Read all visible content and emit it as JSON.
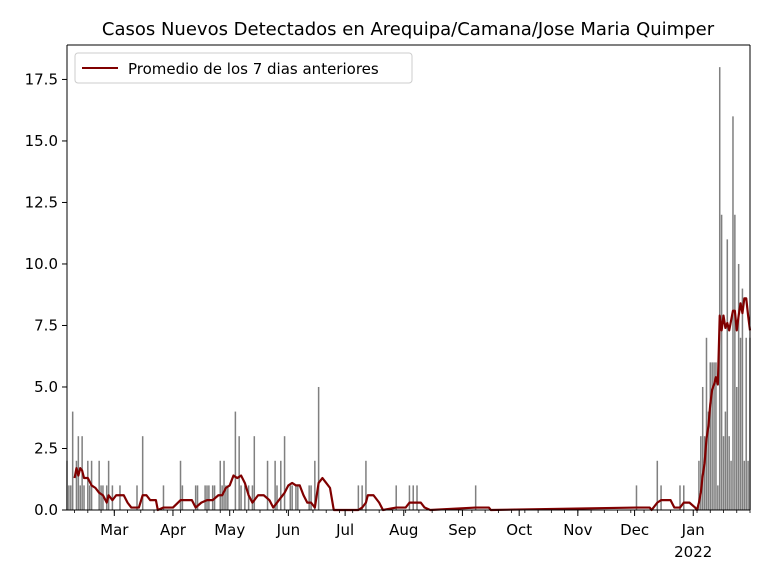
{
  "chart_data": {
    "type": "bar",
    "title": "Casos Nuevos Detectados en Arequipa/Camana/Jose Maria Quimper",
    "xlabel": "",
    "ylabel": "",
    "ylim": [
      0,
      18.9
    ],
    "yticks": [
      "0.0",
      "2.5",
      "5.0",
      "7.5",
      "10.0",
      "12.5",
      "15.0",
      "17.5"
    ],
    "xrange": [
      "2021-02-04",
      "2022-01-31"
    ],
    "xticks": [
      {
        "date": "2021-03-01",
        "label": "Mar",
        "sublabel": ""
      },
      {
        "date": "2021-04-01",
        "label": "Apr",
        "sublabel": ""
      },
      {
        "date": "2021-05-01",
        "label": "May",
        "sublabel": ""
      },
      {
        "date": "2021-06-01",
        "label": "Jun",
        "sublabel": ""
      },
      {
        "date": "2021-07-01",
        "label": "Jul",
        "sublabel": ""
      },
      {
        "date": "2021-08-01",
        "label": "Aug",
        "sublabel": ""
      },
      {
        "date": "2021-09-01",
        "label": "Sep",
        "sublabel": ""
      },
      {
        "date": "2021-10-01",
        "label": "Oct",
        "sublabel": ""
      },
      {
        "date": "2021-11-01",
        "label": "Nov",
        "sublabel": ""
      },
      {
        "date": "2021-12-01",
        "label": "Dec",
        "sublabel": ""
      },
      {
        "date": "2022-01-01",
        "label": "Jan",
        "sublabel": "2022"
      }
    ],
    "grid": false,
    "legend_position": "top-left",
    "bar_color": "#808080",
    "line_color": "#800000",
    "series": [
      {
        "name": "",
        "type": "bar",
        "points": [
          [
            "2021-02-04",
            2
          ],
          [
            "2021-02-05",
            1
          ],
          [
            "2021-02-06",
            1
          ],
          [
            "2021-02-07",
            4
          ],
          [
            "2021-02-09",
            2
          ],
          [
            "2021-02-10",
            3
          ],
          [
            "2021-02-11",
            1
          ],
          [
            "2021-02-12",
            3
          ],
          [
            "2021-02-13",
            1
          ],
          [
            "2021-02-15",
            2
          ],
          [
            "2021-02-16",
            1
          ],
          [
            "2021-02-17",
            2
          ],
          [
            "2021-02-21",
            2
          ],
          [
            "2021-02-22",
            1
          ],
          [
            "2021-02-23",
            1
          ],
          [
            "2021-02-25",
            1
          ],
          [
            "2021-02-26",
            2
          ],
          [
            "2021-02-28",
            1
          ],
          [
            "2021-03-04",
            1
          ],
          [
            "2021-03-13",
            1
          ],
          [
            "2021-03-16",
            3
          ],
          [
            "2021-03-27",
            1
          ],
          [
            "2021-04-05",
            2
          ],
          [
            "2021-04-06",
            1
          ],
          [
            "2021-04-13",
            1
          ],
          [
            "2021-04-14",
            1
          ],
          [
            "2021-04-18",
            1
          ],
          [
            "2021-04-19",
            1
          ],
          [
            "2021-04-20",
            1
          ],
          [
            "2021-04-22",
            1
          ],
          [
            "2021-04-23",
            1
          ],
          [
            "2021-04-26",
            2
          ],
          [
            "2021-04-27",
            1
          ],
          [
            "2021-04-28",
            2
          ],
          [
            "2021-04-29",
            1
          ],
          [
            "2021-04-30",
            1
          ],
          [
            "2021-05-04",
            4
          ],
          [
            "2021-05-06",
            3
          ],
          [
            "2021-05-07",
            1
          ],
          [
            "2021-05-09",
            1
          ],
          [
            "2021-05-11",
            1
          ],
          [
            "2021-05-13",
            1
          ],
          [
            "2021-05-14",
            3
          ],
          [
            "2021-05-21",
            2
          ],
          [
            "2021-05-25",
            2
          ],
          [
            "2021-05-26",
            1
          ],
          [
            "2021-05-28",
            2
          ],
          [
            "2021-05-30",
            3
          ],
          [
            "2021-06-02",
            1
          ],
          [
            "2021-06-03",
            1
          ],
          [
            "2021-06-05",
            1
          ],
          [
            "2021-06-06",
            1
          ],
          [
            "2021-06-12",
            1
          ],
          [
            "2021-06-13",
            1
          ],
          [
            "2021-06-15",
            2
          ],
          [
            "2021-06-17",
            5
          ],
          [
            "2021-07-08",
            1
          ],
          [
            "2021-07-10",
            1
          ],
          [
            "2021-07-12",
            2
          ],
          [
            "2021-07-28",
            1
          ],
          [
            "2021-08-04",
            1
          ],
          [
            "2021-08-06",
            1
          ],
          [
            "2021-08-08",
            1
          ],
          [
            "2021-09-08",
            1
          ],
          [
            "2021-12-02",
            1
          ],
          [
            "2021-12-13",
            2
          ],
          [
            "2021-12-15",
            1
          ],
          [
            "2021-12-25",
            1
          ],
          [
            "2021-12-27",
            1
          ],
          [
            "2022-01-04",
            2
          ],
          [
            "2022-01-05",
            3
          ],
          [
            "2022-01-06",
            5
          ],
          [
            "2022-01-07",
            3
          ],
          [
            "2022-01-08",
            7
          ],
          [
            "2022-01-09",
            4
          ],
          [
            "2022-01-10",
            6
          ],
          [
            "2022-01-11",
            6
          ],
          [
            "2022-01-12",
            6
          ],
          [
            "2022-01-13",
            6
          ],
          [
            "2022-01-14",
            1
          ],
          [
            "2022-01-15",
            18
          ],
          [
            "2022-01-16",
            12
          ],
          [
            "2022-01-17",
            3
          ],
          [
            "2022-01-18",
            4
          ],
          [
            "2022-01-19",
            11
          ],
          [
            "2022-01-20",
            3
          ],
          [
            "2022-01-21",
            2
          ],
          [
            "2022-01-22",
            16
          ],
          [
            "2022-01-23",
            12
          ],
          [
            "2022-01-24",
            5
          ],
          [
            "2022-01-25",
            10
          ],
          [
            "2022-01-26",
            7
          ],
          [
            "2022-01-27",
            9
          ],
          [
            "2022-01-28",
            2
          ],
          [
            "2022-01-29",
            7
          ],
          [
            "2022-01-30",
            2
          ],
          [
            "2022-01-31",
            7
          ]
        ]
      },
      {
        "name": "Promedio de los 7 dias anteriores",
        "type": "line",
        "points": [
          [
            "2021-02-08",
            1.3
          ],
          [
            "2021-02-09",
            1.7
          ],
          [
            "2021-02-10",
            1.4
          ],
          [
            "2021-02-11",
            1.7
          ],
          [
            "2021-02-12",
            1.6
          ],
          [
            "2021-02-13",
            1.3
          ],
          [
            "2021-02-15",
            1.3
          ],
          [
            "2021-02-17",
            1.0
          ],
          [
            "2021-02-19",
            0.9
          ],
          [
            "2021-02-21",
            0.7
          ],
          [
            "2021-02-23",
            0.6
          ],
          [
            "2021-02-25",
            0.3
          ],
          [
            "2021-02-26",
            0.6
          ],
          [
            "2021-02-28",
            0.4
          ],
          [
            "2021-03-02",
            0.6
          ],
          [
            "2021-03-04",
            0.6
          ],
          [
            "2021-03-06",
            0.6
          ],
          [
            "2021-03-08",
            0.3
          ],
          [
            "2021-03-10",
            0.1
          ],
          [
            "2021-03-12",
            0.1
          ],
          [
            "2021-03-14",
            0.1
          ],
          [
            "2021-03-16",
            0.6
          ],
          [
            "2021-03-18",
            0.6
          ],
          [
            "2021-03-20",
            0.4
          ],
          [
            "2021-03-23",
            0.4
          ],
          [
            "2021-03-24",
            0.0
          ],
          [
            "2021-03-27",
            0.1
          ],
          [
            "2021-04-01",
            0.1
          ],
          [
            "2021-04-05",
            0.4
          ],
          [
            "2021-04-08",
            0.4
          ],
          [
            "2021-04-11",
            0.4
          ],
          [
            "2021-04-13",
            0.1
          ],
          [
            "2021-04-16",
            0.3
          ],
          [
            "2021-04-19",
            0.4
          ],
          [
            "2021-04-22",
            0.4
          ],
          [
            "2021-04-25",
            0.6
          ],
          [
            "2021-04-27",
            0.6
          ],
          [
            "2021-04-29",
            0.9
          ],
          [
            "2021-05-01",
            1.0
          ],
          [
            "2021-05-03",
            1.4
          ],
          [
            "2021-05-05",
            1.3
          ],
          [
            "2021-05-07",
            1.4
          ],
          [
            "2021-05-09",
            1.1
          ],
          [
            "2021-05-11",
            0.6
          ],
          [
            "2021-05-13",
            0.3
          ],
          [
            "2021-05-16",
            0.6
          ],
          [
            "2021-05-19",
            0.6
          ],
          [
            "2021-05-22",
            0.4
          ],
          [
            "2021-05-24",
            0.1
          ],
          [
            "2021-05-27",
            0.4
          ],
          [
            "2021-05-30",
            0.7
          ],
          [
            "2021-06-01",
            1.0
          ],
          [
            "2021-06-03",
            1.1
          ],
          [
            "2021-06-05",
            1.0
          ],
          [
            "2021-06-07",
            1.0
          ],
          [
            "2021-06-09",
            0.6
          ],
          [
            "2021-06-11",
            0.3
          ],
          [
            "2021-06-13",
            0.3
          ],
          [
            "2021-06-15",
            0.1
          ],
          [
            "2021-06-17",
            1.1
          ],
          [
            "2021-06-19",
            1.3
          ],
          [
            "2021-06-21",
            1.1
          ],
          [
            "2021-06-23",
            0.9
          ],
          [
            "2021-06-25",
            0.0
          ],
          [
            "2021-07-08",
            0.0
          ],
          [
            "2021-07-10",
            0.1
          ],
          [
            "2021-07-12",
            0.3
          ],
          [
            "2021-07-13",
            0.6
          ],
          [
            "2021-07-16",
            0.6
          ],
          [
            "2021-07-19",
            0.3
          ],
          [
            "2021-07-21",
            0.0
          ],
          [
            "2021-07-28",
            0.1
          ],
          [
            "2021-08-02",
            0.1
          ],
          [
            "2021-08-04",
            0.3
          ],
          [
            "2021-08-06",
            0.3
          ],
          [
            "2021-08-08",
            0.3
          ],
          [
            "2021-08-10",
            0.3
          ],
          [
            "2021-08-12",
            0.1
          ],
          [
            "2021-08-15",
            0.0
          ],
          [
            "2021-09-08",
            0.1
          ],
          [
            "2021-09-15",
            0.1
          ],
          [
            "2021-09-16",
            0.0
          ],
          [
            "2021-12-02",
            0.1
          ],
          [
            "2021-12-09",
            0.1
          ],
          [
            "2021-12-10",
            0.0
          ],
          [
            "2021-12-13",
            0.3
          ],
          [
            "2021-12-15",
            0.4
          ],
          [
            "2021-12-20",
            0.4
          ],
          [
            "2021-12-22",
            0.1
          ],
          [
            "2021-12-25",
            0.1
          ],
          [
            "2021-12-27",
            0.3
          ],
          [
            "2021-12-30",
            0.3
          ],
          [
            "2022-01-02",
            0.1
          ],
          [
            "2022-01-03",
            0.0
          ],
          [
            "2022-01-04",
            0.3
          ],
          [
            "2022-01-05",
            0.7
          ],
          [
            "2022-01-06",
            1.4
          ],
          [
            "2022-01-07",
            1.9
          ],
          [
            "2022-01-08",
            2.9
          ],
          [
            "2022-01-09",
            3.4
          ],
          [
            "2022-01-10",
            4.3
          ],
          [
            "2022-01-11",
            4.9
          ],
          [
            "2022-01-12",
            5.1
          ],
          [
            "2022-01-13",
            5.4
          ],
          [
            "2022-01-14",
            5.1
          ],
          [
            "2022-01-15",
            7.9
          ],
          [
            "2022-01-16",
            7.3
          ],
          [
            "2022-01-17",
            7.9
          ],
          [
            "2022-01-18",
            7.4
          ],
          [
            "2022-01-19",
            7.6
          ],
          [
            "2022-01-20",
            7.3
          ],
          [
            "2022-01-21",
            7.7
          ],
          [
            "2022-01-22",
            8.1
          ],
          [
            "2022-01-23",
            8.1
          ],
          [
            "2022-01-24",
            7.3
          ],
          [
            "2022-01-25",
            7.9
          ],
          [
            "2022-01-26",
            8.4
          ],
          [
            "2022-01-27",
            8.0
          ],
          [
            "2022-01-28",
            8.6
          ],
          [
            "2022-01-29",
            8.6
          ],
          [
            "2022-01-30",
            7.9
          ],
          [
            "2022-01-31",
            7.3
          ]
        ]
      }
    ]
  }
}
